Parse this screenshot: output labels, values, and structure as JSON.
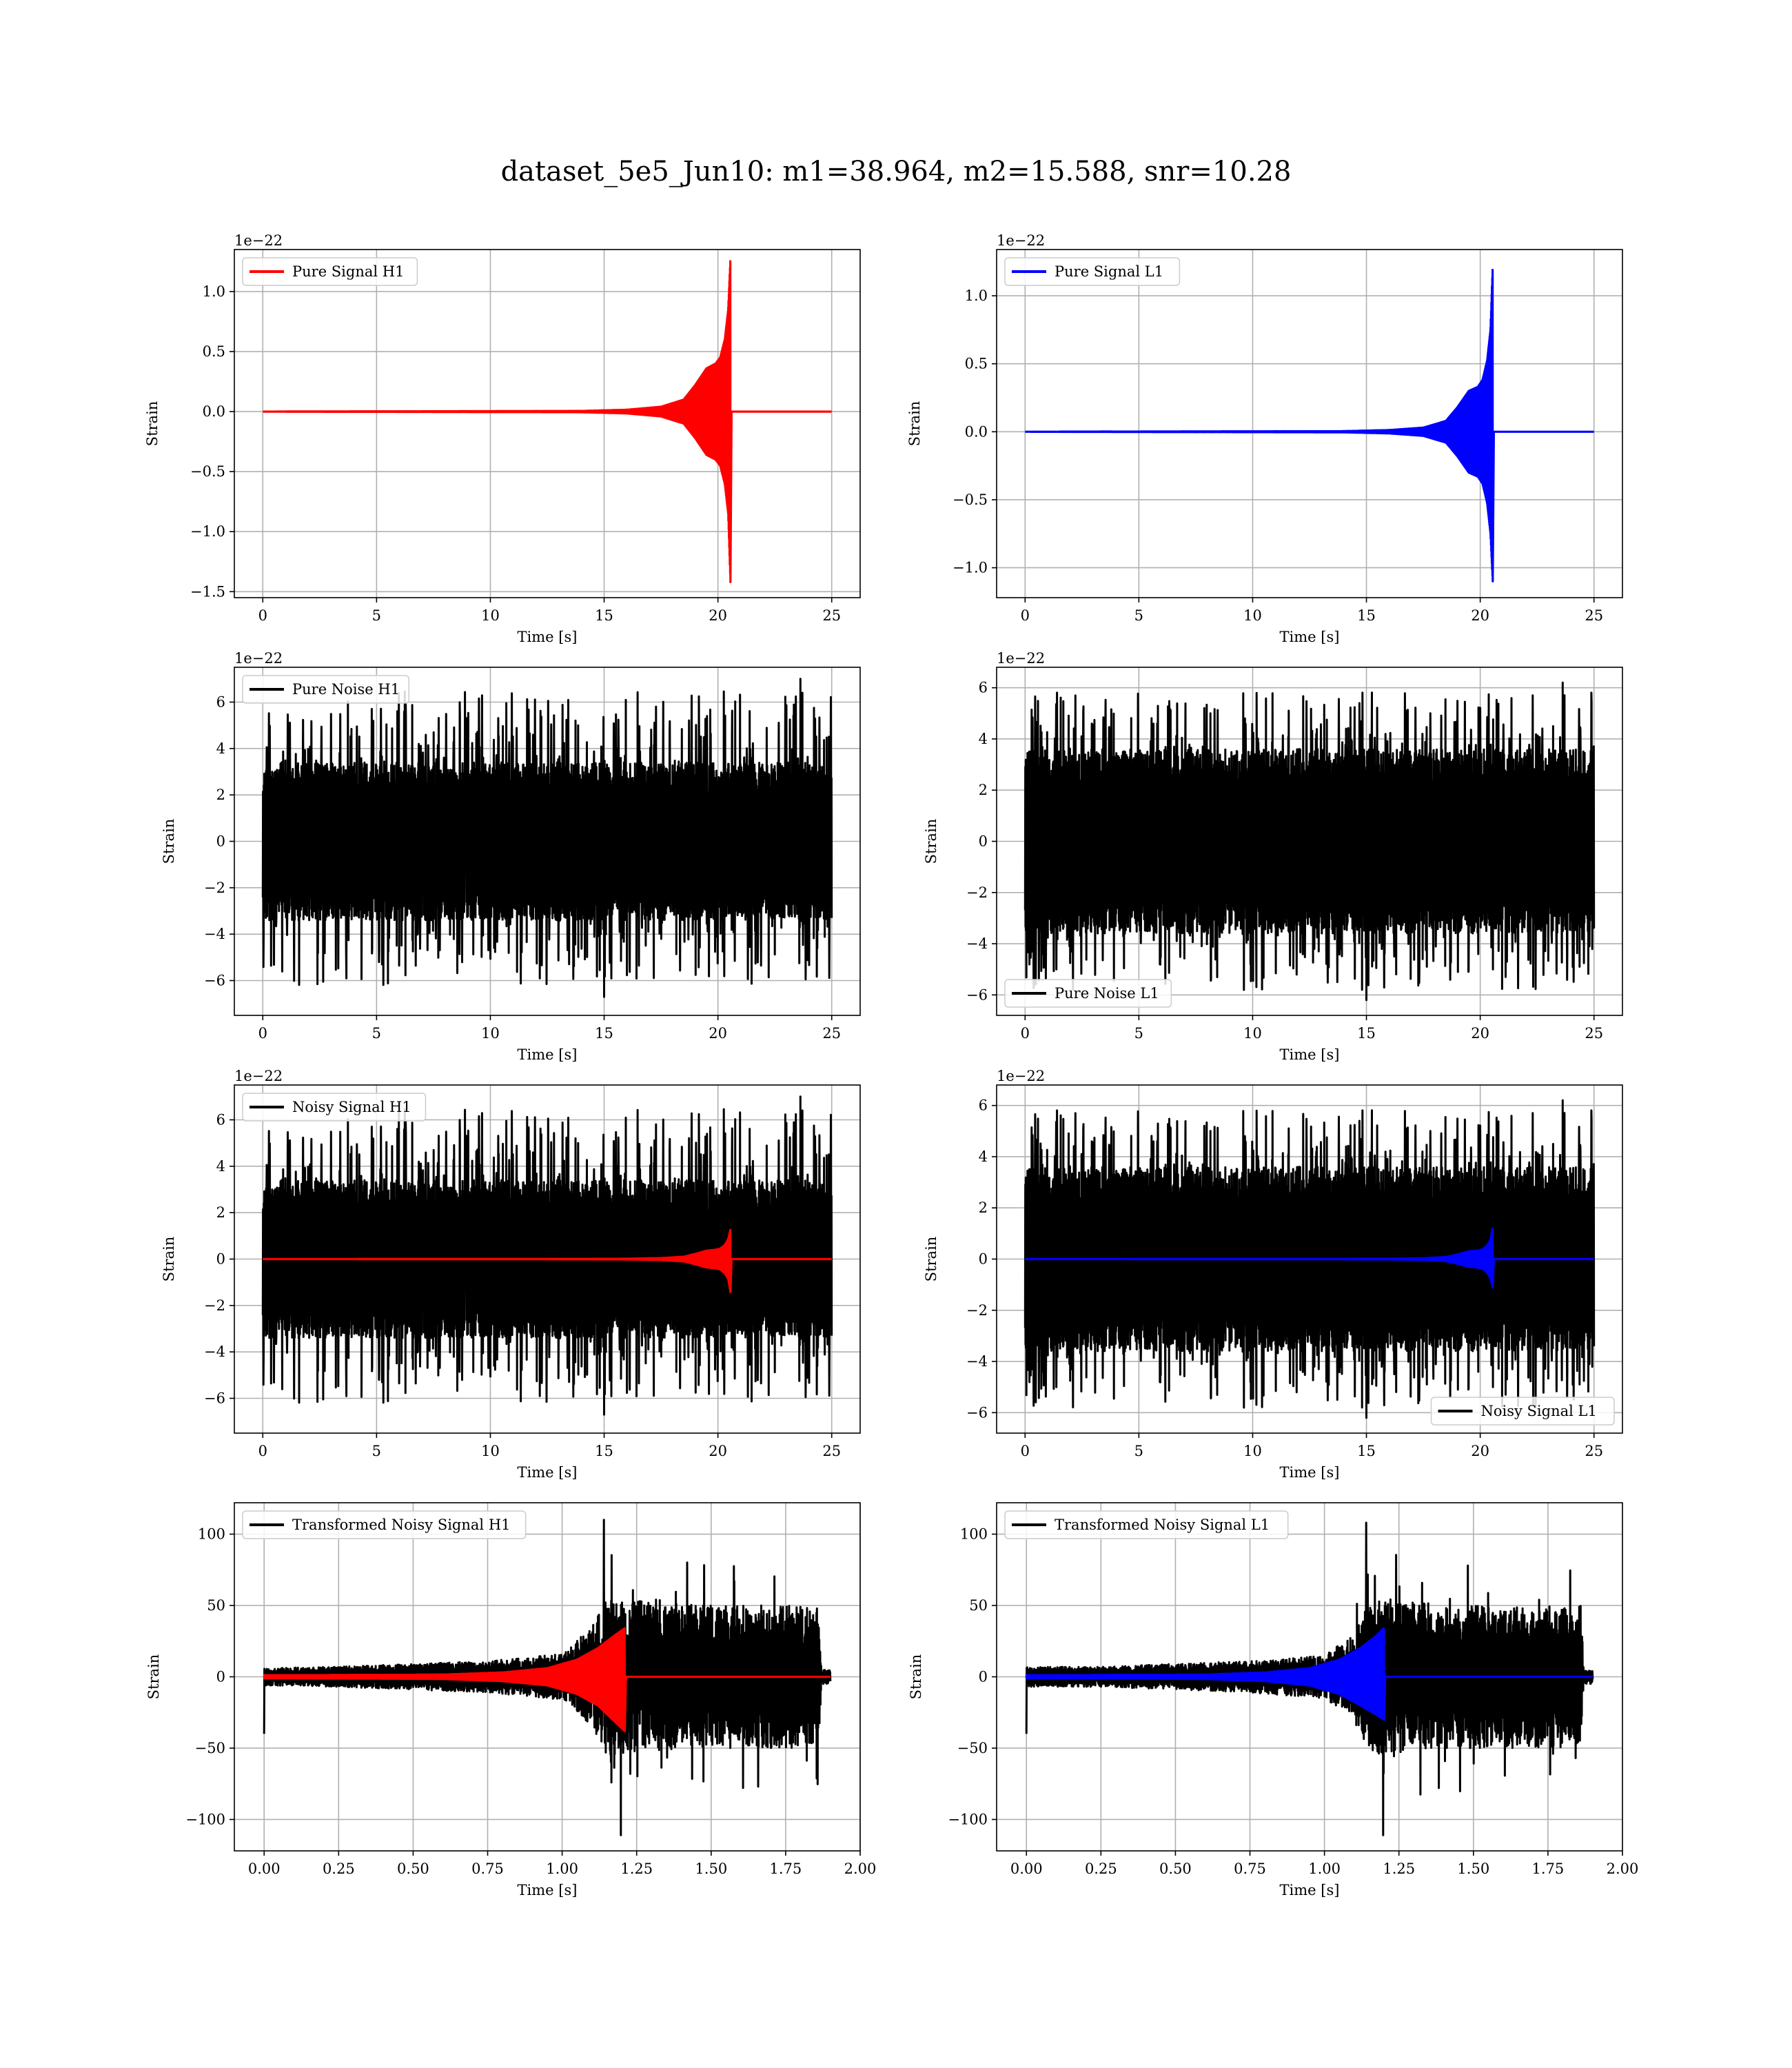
{
  "figure": {
    "title": "dataset_5e5_Jun10: m1=38.964, m2=15.588, snr=10.28"
  },
  "chart_data": [
    {
      "panel": "pure-signal-h1",
      "type": "line",
      "xlabel": "Time [s]",
      "ylabel": "Strain",
      "offset_text": "1e−22",
      "xlim": [
        -1.25,
        26.25
      ],
      "ylim": [
        -1.55,
        1.35
      ],
      "xticks": [
        0,
        5,
        10,
        15,
        20,
        25
      ],
      "xtick_labels": [
        "0",
        "5",
        "10",
        "15",
        "20",
        "25"
      ],
      "yticks": [
        -1.5,
        -1.0,
        -0.5,
        0.0,
        0.5,
        1.0
      ],
      "ytick_labels": [
        "−1.5",
        "−1.0",
        "−0.5",
        "0.0",
        "0.5",
        "1.0"
      ],
      "grid": true,
      "legend_position": "upper left",
      "series": [
        {
          "name": "Pure Signal H1",
          "kind": "chirp",
          "color": "#ff0000",
          "x_range": [
            0,
            25
          ],
          "merger_time": 20.55,
          "envelope_x": [
            0,
            14,
            16,
            17.5,
            18.5,
            19,
            19.5,
            19.9,
            20.1,
            20.3,
            20.45,
            20.55
          ],
          "envelope_upper": [
            0,
            0.005,
            0.015,
            0.04,
            0.1,
            0.22,
            0.36,
            0.4,
            0.45,
            0.6,
            0.85,
            1.28
          ],
          "envelope_lower": [
            0,
            -0.005,
            -0.015,
            -0.04,
            -0.1,
            -0.22,
            -0.36,
            -0.4,
            -0.45,
            -0.6,
            -0.85,
            -1.42
          ]
        }
      ]
    },
    {
      "panel": "pure-signal-l1",
      "type": "line",
      "xlabel": "Time [s]",
      "ylabel": "Strain",
      "offset_text": "1e−22",
      "xlim": [
        -1.25,
        26.25
      ],
      "ylim": [
        -1.22,
        1.34
      ],
      "xticks": [
        0,
        5,
        10,
        15,
        20,
        25
      ],
      "xtick_labels": [
        "0",
        "5",
        "10",
        "15",
        "20",
        "25"
      ],
      "yticks": [
        -1.0,
        -0.5,
        0.0,
        0.5,
        1.0
      ],
      "ytick_labels": [
        "−1.0",
        "−0.5",
        "0.0",
        "0.5",
        "1.0"
      ],
      "grid": true,
      "legend_position": "upper left",
      "series": [
        {
          "name": "Pure Signal L1",
          "kind": "chirp",
          "color": "#0000ff",
          "x_range": [
            0,
            25
          ],
          "merger_time": 20.55,
          "envelope_x": [
            0,
            14,
            16,
            17.5,
            18.5,
            19,
            19.5,
            19.9,
            20.1,
            20.3,
            20.45,
            20.55
          ],
          "envelope_upper": [
            0,
            0.004,
            0.012,
            0.03,
            0.08,
            0.18,
            0.3,
            0.33,
            0.38,
            0.52,
            0.75,
            1.22
          ],
          "envelope_lower": [
            0,
            -0.004,
            -0.012,
            -0.03,
            -0.08,
            -0.18,
            -0.3,
            -0.33,
            -0.38,
            -0.52,
            -0.75,
            -1.1
          ]
        }
      ]
    },
    {
      "panel": "pure-noise-h1",
      "type": "line",
      "xlabel": "Time [s]",
      "ylabel": "Strain",
      "offset_text": "1e−22",
      "xlim": [
        -1.25,
        26.25
      ],
      "ylim": [
        -7.5,
        7.5
      ],
      "xticks": [
        0,
        5,
        10,
        15,
        20,
        25
      ],
      "xtick_labels": [
        "0",
        "5",
        "10",
        "15",
        "20",
        "25"
      ],
      "yticks": [
        -6,
        -4,
        -2,
        0,
        2,
        4,
        6
      ],
      "ytick_labels": [
        "−6",
        "−4",
        "−2",
        "0",
        "2",
        "4",
        "6"
      ],
      "grid": true,
      "legend_position": "upper left",
      "series": [
        {
          "name": "Pure Noise H1",
          "kind": "noise",
          "color": "#000000",
          "x_range": [
            0,
            25
          ],
          "band": 3.4,
          "peak_max": 7.0,
          "peak_min": -6.7,
          "seed": 11
        }
      ]
    },
    {
      "panel": "pure-noise-l1",
      "type": "line",
      "xlabel": "Time [s]",
      "ylabel": "Strain",
      "offset_text": "1e−22",
      "xlim": [
        -1.25,
        26.25
      ],
      "ylim": [
        -6.8,
        6.8
      ],
      "xticks": [
        0,
        5,
        10,
        15,
        20,
        25
      ],
      "xtick_labels": [
        "0",
        "5",
        "10",
        "15",
        "20",
        "25"
      ],
      "yticks": [
        -6,
        -4,
        -2,
        0,
        2,
        4,
        6
      ],
      "ytick_labels": [
        "−6",
        "−4",
        "−2",
        "0",
        "2",
        "4",
        "6"
      ],
      "grid": true,
      "legend_position": "lower left",
      "series": [
        {
          "name": "Pure Noise L1",
          "kind": "noise",
          "color": "#000000",
          "x_range": [
            0,
            25
          ],
          "band": 3.6,
          "peak_max": 6.2,
          "peak_min": -6.2,
          "seed": 23
        }
      ]
    },
    {
      "panel": "noisy-signal-h1",
      "type": "line",
      "xlabel": "Time [s]",
      "ylabel": "Strain",
      "offset_text": "1e−22",
      "xlim": [
        -1.25,
        26.25
      ],
      "ylim": [
        -7.5,
        7.5
      ],
      "xticks": [
        0,
        5,
        10,
        15,
        20,
        25
      ],
      "xtick_labels": [
        "0",
        "5",
        "10",
        "15",
        "20",
        "25"
      ],
      "yticks": [
        -6,
        -4,
        -2,
        0,
        2,
        4,
        6
      ],
      "ytick_labels": [
        "−6",
        "−4",
        "−2",
        "0",
        "2",
        "4",
        "6"
      ],
      "grid": true,
      "legend_position": "upper left",
      "series": [
        {
          "name": "Noisy Signal H1",
          "kind": "noise",
          "color": "#000000",
          "x_range": [
            0,
            25
          ],
          "band": 3.4,
          "peak_max": 7.0,
          "peak_min": -6.7,
          "seed": 11
        },
        {
          "kind": "chirp",
          "color": "#ff0000",
          "x_range": [
            0,
            25
          ],
          "merger_time": 20.55,
          "envelope_x": [
            0,
            14,
            16,
            17.5,
            18.5,
            19,
            19.5,
            19.9,
            20.1,
            20.3,
            20.45,
            20.55
          ],
          "envelope_upper": [
            0,
            0.005,
            0.015,
            0.04,
            0.1,
            0.22,
            0.36,
            0.4,
            0.45,
            0.6,
            0.85,
            1.28
          ],
          "envelope_lower": [
            0,
            -0.005,
            -0.015,
            -0.04,
            -0.1,
            -0.22,
            -0.36,
            -0.4,
            -0.45,
            -0.6,
            -0.85,
            -1.42
          ]
        }
      ]
    },
    {
      "panel": "noisy-signal-l1",
      "type": "line",
      "xlabel": "Time [s]",
      "ylabel": "Strain",
      "offset_text": "1e−22",
      "xlim": [
        -1.25,
        26.25
      ],
      "ylim": [
        -6.8,
        6.8
      ],
      "xticks": [
        0,
        5,
        10,
        15,
        20,
        25
      ],
      "xtick_labels": [
        "0",
        "5",
        "10",
        "15",
        "20",
        "25"
      ],
      "yticks": [
        -6,
        -4,
        -2,
        0,
        2,
        4,
        6
      ],
      "ytick_labels": [
        "−6",
        "−4",
        "−2",
        "0",
        "2",
        "4",
        "6"
      ],
      "grid": true,
      "legend_position": "lower right",
      "series": [
        {
          "name": "Noisy Signal L1",
          "kind": "noise",
          "color": "#000000",
          "x_range": [
            0,
            25
          ],
          "band": 3.6,
          "peak_max": 6.2,
          "peak_min": -6.2,
          "seed": 23
        },
        {
          "kind": "chirp",
          "color": "#0000ff",
          "x_range": [
            0,
            25
          ],
          "merger_time": 20.55,
          "envelope_x": [
            0,
            14,
            16,
            17.5,
            18.5,
            19,
            19.5,
            19.9,
            20.1,
            20.3,
            20.45,
            20.55
          ],
          "envelope_upper": [
            0,
            0.004,
            0.012,
            0.03,
            0.08,
            0.18,
            0.3,
            0.33,
            0.38,
            0.52,
            0.75,
            1.22
          ],
          "envelope_lower": [
            0,
            -0.004,
            -0.012,
            -0.03,
            -0.08,
            -0.18,
            -0.3,
            -0.33,
            -0.38,
            -0.52,
            -0.75,
            -1.1
          ]
        }
      ]
    },
    {
      "panel": "transformed-noisy-signal-h1",
      "type": "line",
      "xlabel": "Time [s]",
      "ylabel": "Strain",
      "xlim": [
        -0.1,
        2.0
      ],
      "ylim": [
        -122,
        122
      ],
      "xticks": [
        0.0,
        0.25,
        0.5,
        0.75,
        1.0,
        1.25,
        1.5,
        1.75,
        2.0
      ],
      "xtick_labels": [
        "0.00",
        "0.25",
        "0.50",
        "0.75",
        "1.00",
        "1.25",
        "1.50",
        "1.75",
        "2.00"
      ],
      "yticks": [
        -100,
        -50,
        0,
        50,
        100
      ],
      "ytick_labels": [
        "−100",
        "−50",
        "0",
        "50",
        "100"
      ],
      "grid": true,
      "legend_position": "upper left",
      "series": [
        {
          "name": "Transformed Noisy Signal H1",
          "kind": "noise-envelope",
          "color": "#000000",
          "x_range": [
            0,
            1.9
          ],
          "end_level": 5,
          "cutoff": 1.87,
          "env_x": [
            0,
            0.25,
            0.5,
            0.75,
            1.0,
            1.1,
            1.15,
            1.2,
            1.3,
            1.5,
            1.7,
            1.86,
            1.87,
            1.9
          ],
          "env_y": [
            6,
            7,
            9,
            11,
            16,
            35,
            55,
            55,
            52,
            50,
            50,
            50,
            5,
            5
          ],
          "spike_max": 110,
          "spike_min": -111,
          "seed": 41
        },
        {
          "kind": "chirp-forward",
          "color": "#ff0000",
          "x_range": [
            0,
            1.9
          ],
          "merger_time": 1.21,
          "envelope_x": [
            0,
            0.6,
            0.8,
            0.95,
            1.05,
            1.12,
            1.17,
            1.21
          ],
          "envelope_upper": [
            1,
            1.5,
            3,
            6,
            12,
            20,
            28,
            34
          ],
          "envelope_lower": [
            -1,
            -1.5,
            -3,
            -6,
            -12,
            -20,
            -30,
            -38
          ]
        }
      ]
    },
    {
      "panel": "transformed-noisy-signal-l1",
      "type": "line",
      "xlabel": "Time [s]",
      "ylabel": "Strain",
      "xlim": [
        -0.1,
        2.0
      ],
      "ylim": [
        -122,
        122
      ],
      "xticks": [
        0.0,
        0.25,
        0.5,
        0.75,
        1.0,
        1.25,
        1.5,
        1.75,
        2.0
      ],
      "xtick_labels": [
        "0.00",
        "0.25",
        "0.50",
        "0.75",
        "1.00",
        "1.25",
        "1.50",
        "1.75",
        "2.00"
      ],
      "yticks": [
        -100,
        -50,
        0,
        50,
        100
      ],
      "ytick_labels": [
        "−100",
        "−50",
        "0",
        "50",
        "100"
      ],
      "grid": true,
      "legend_position": "upper left",
      "series": [
        {
          "name": "Transformed Noisy Signal L1",
          "kind": "noise-envelope",
          "color": "#000000",
          "x_range": [
            0,
            1.9
          ],
          "end_level": 5,
          "cutoff": 1.87,
          "env_x": [
            0,
            0.25,
            0.5,
            0.75,
            1.0,
            1.1,
            1.15,
            1.2,
            1.3,
            1.5,
            1.7,
            1.86,
            1.87,
            1.9
          ],
          "env_y": [
            7,
            7,
            9,
            11,
            15,
            30,
            52,
            55,
            52,
            50,
            50,
            50,
            5,
            5
          ],
          "spike_max": 108,
          "spike_min": -111,
          "seed": 57
        },
        {
          "kind": "chirp-forward",
          "color": "#0000ff",
          "x_range": [
            0,
            1.9
          ],
          "merger_time": 1.2,
          "envelope_x": [
            0,
            0.6,
            0.8,
            0.95,
            1.05,
            1.12,
            1.17,
            1.2
          ],
          "envelope_upper": [
            1,
            1.5,
            3,
            6,
            12,
            20,
            28,
            34
          ],
          "envelope_lower": [
            -1,
            -1.5,
            -3,
            -6,
            -12,
            -20,
            -26,
            -30
          ]
        }
      ]
    }
  ]
}
